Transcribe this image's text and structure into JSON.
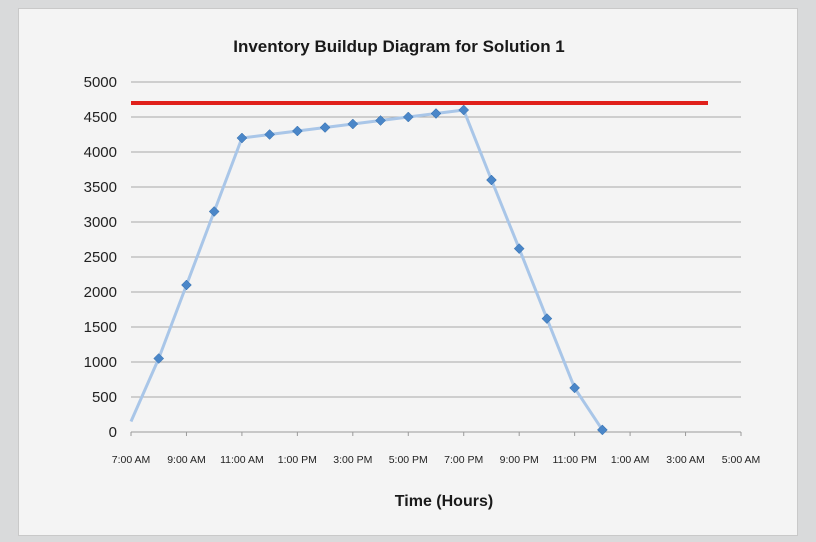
{
  "chart_data": {
    "type": "line",
    "title": "Inventory Buildup Diagram for Solution 1",
    "xlabel": "Time  (Hours)",
    "ylabel": "",
    "ylim": [
      0,
      5000
    ],
    "yticks": [
      0,
      500,
      1000,
      1500,
      2000,
      2500,
      3000,
      3500,
      4000,
      4500,
      5000
    ],
    "xticklabels": [
      "7:00 AM",
      "9:00 AM",
      "11:00 AM",
      "1:00 PM",
      "3:00 PM",
      "5:00 PM",
      "7:00 PM",
      "9:00 PM",
      "11:00 PM",
      "1:00 AM",
      "3:00 AM",
      "5:00 AM"
    ],
    "grid": true,
    "legend": "none",
    "series": [
      {
        "color": "#4a86c8",
        "line_color": "#a9c6e8",
        "marker": "diamond",
        "x": [
          0,
          1,
          2,
          3,
          4,
          5,
          6,
          7,
          8,
          9,
          10,
          11,
          12,
          13,
          14,
          15,
          16,
          17
        ],
        "values": [
          150,
          1050,
          2100,
          3150,
          4200,
          4250,
          4300,
          4350,
          4400,
          4450,
          4500,
          4550,
          4600,
          3600,
          2620,
          1620,
          630,
          30
        ],
        "markers_from_index": 1
      }
    ],
    "reference_line": {
      "y": 4700,
      "color": "#e0201b"
    }
  }
}
